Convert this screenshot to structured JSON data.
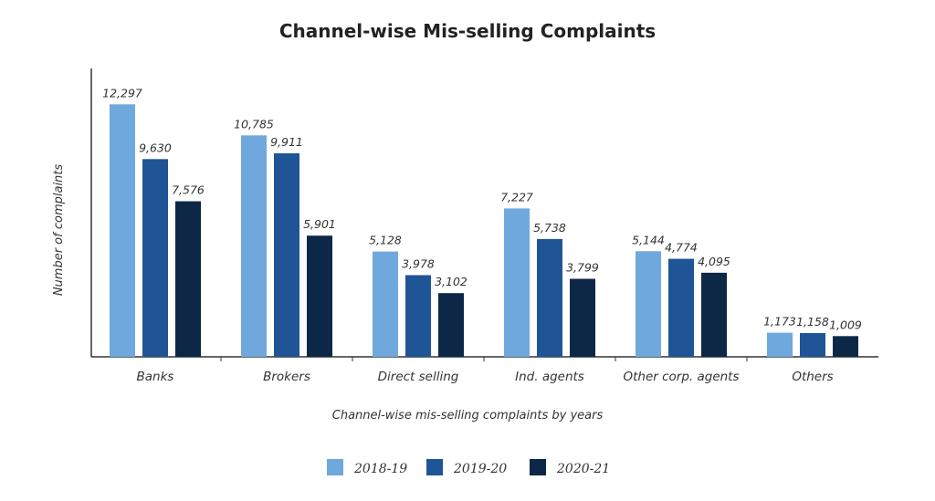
{
  "chart_data": {
    "type": "bar",
    "title": "Channel-wise Mis-selling Complaints",
    "xlabel": "Channel-wise mis-selling complaints by years",
    "ylabel": "Number of complaints",
    "categories": [
      "Banks",
      "Brokers",
      "Direct selling",
      "Ind. agents",
      "Other corp. agents",
      "Others"
    ],
    "series": [
      {
        "name": "2018-19",
        "color": "#6fa8dc",
        "values": [
          12297,
          10785,
          5128,
          7227,
          5144,
          1173
        ],
        "labels": [
          "12,297",
          "10,785",
          "5,128",
          "7,227",
          "5,144",
          "1,173"
        ]
      },
      {
        "name": "2019-20",
        "color": "#1f5597",
        "values": [
          9630,
          9911,
          3978,
          5738,
          4774,
          1158
        ],
        "labels": [
          "9,630",
          "9,911",
          "3,978",
          "5,738",
          "4,774",
          "1,158"
        ]
      },
      {
        "name": "2020-21",
        "color": "#0d2847",
        "values": [
          7576,
          5901,
          3102,
          3799,
          4095,
          1009
        ],
        "labels": [
          "7,576",
          "5,901",
          "3,102",
          "3,799",
          "4,095",
          "1,009"
        ]
      }
    ],
    "ylim": [
      0,
      14000
    ],
    "grid": false,
    "legend_position": "bottom",
    "y_tick_labels_shown": false
  }
}
